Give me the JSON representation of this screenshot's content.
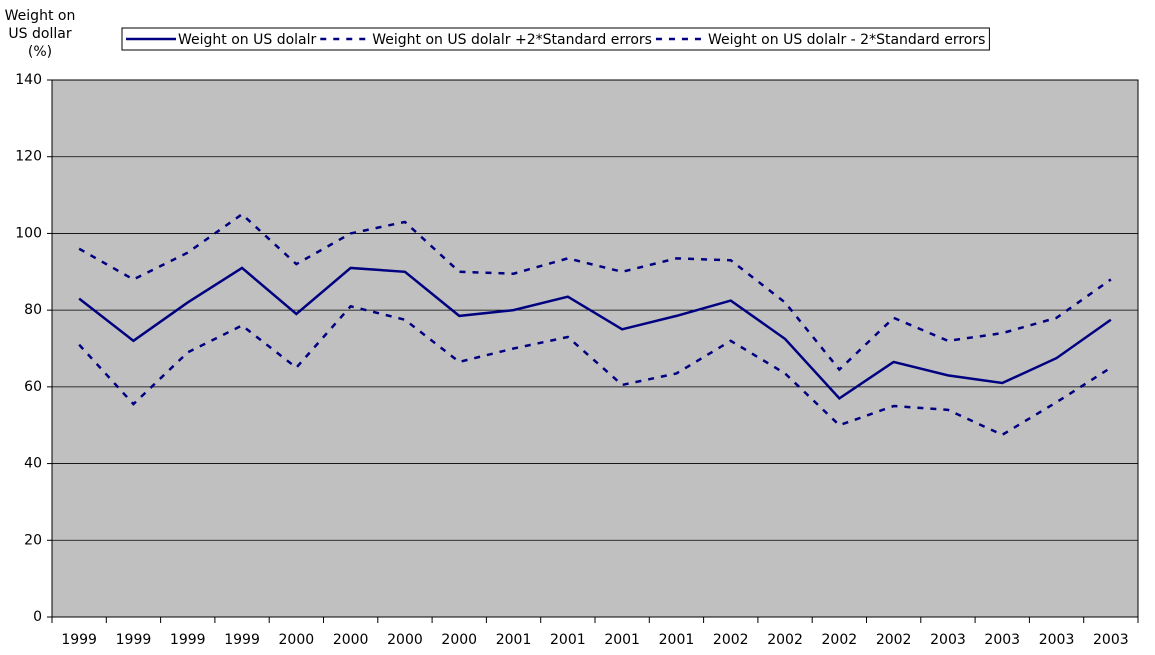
{
  "chart_data": {
    "type": "line",
    "ylabel": [
      "Weight on",
      "US dollar",
      "(%)"
    ],
    "categories": [
      "1999",
      "1999",
      "1999",
      "1999",
      "2000",
      "2000",
      "2000",
      "2000",
      "2001",
      "2001",
      "2001",
      "2001",
      "2002",
      "2002",
      "2002",
      "2002",
      "2003",
      "2003",
      "2003",
      "2003"
    ],
    "series": [
      {
        "name": "Weight on US dolalr",
        "color": "#000080",
        "style": "solid",
        "values": [
          83,
          72,
          82,
          91,
          79,
          91,
          90,
          78.5,
          80,
          83.5,
          75,
          78.5,
          82.5,
          72.5,
          57,
          66.5,
          63,
          61,
          67.5,
          77.5
        ]
      },
      {
        "name": "Weight on US dolalr +2*Standard errors",
        "color": "#000080",
        "style": "dashed",
        "values": [
          96,
          88,
          95,
          105,
          92,
          100,
          103,
          90,
          89.5,
          93.5,
          90,
          93.5,
          93,
          82,
          64.5,
          78,
          72,
          74,
          78,
          88
        ]
      },
      {
        "name": "Weight on US dolalr - 2*Standard errors",
        "color": "#000080",
        "style": "dashed",
        "values": [
          71,
          55.5,
          69,
          76,
          65,
          81,
          77.5,
          66.5,
          70,
          73,
          60.5,
          63.5,
          72,
          63.5,
          50,
          55,
          54,
          47.5,
          56,
          65
        ]
      }
    ],
    "ylim": [
      0,
      140
    ],
    "yticks": [
      0,
      20,
      40,
      60,
      80,
      100,
      120,
      140
    ],
    "grid": true,
    "plot_background": "#c0c0c0"
  }
}
